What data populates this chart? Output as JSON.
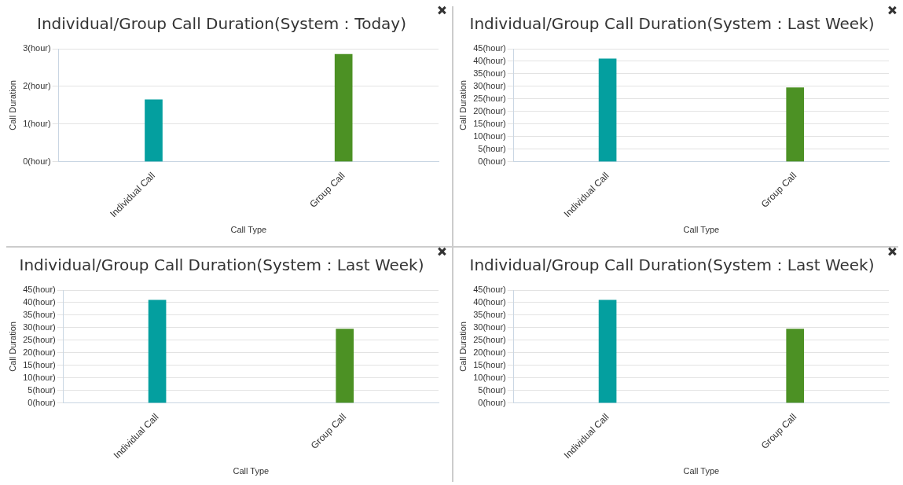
{
  "chart_data": [
    {
      "type": "bar",
      "title": "Individual/Group Call Duration(System：Today)",
      "xlabel": "Call Type",
      "ylabel": "Call Duration",
      "categories": [
        "Individual Call",
        "Group Call"
      ],
      "values": [
        1.65,
        2.85
      ],
      "colors": [
        "#049f9f",
        "#4c9124"
      ],
      "ylim": [
        0,
        3
      ],
      "yticks": [
        {
          "value": 0,
          "label": "0(hour)"
        },
        {
          "value": 1,
          "label": "1(hour)"
        },
        {
          "value": 2,
          "label": "2(hour)"
        },
        {
          "value": 3,
          "label": "3(hour)"
        }
      ],
      "grid": "y",
      "legend": false
    },
    {
      "type": "bar",
      "title": "Individual/Group Call Duration(System：Last Week)",
      "xlabel": "Call Type",
      "ylabel": "Call Duration",
      "categories": [
        "Individual Call",
        "Group Call"
      ],
      "values": [
        41,
        29.5
      ],
      "colors": [
        "#049f9f",
        "#4c9124"
      ],
      "ylim": [
        0,
        45
      ],
      "yticks": [
        {
          "value": 0,
          "label": "0(hour)"
        },
        {
          "value": 5,
          "label": "5(hour)"
        },
        {
          "value": 10,
          "label": "10(hour)"
        },
        {
          "value": 15,
          "label": "15(hour)"
        },
        {
          "value": 20,
          "label": "20(hour)"
        },
        {
          "value": 25,
          "label": "25(hour)"
        },
        {
          "value": 30,
          "label": "30(hour)"
        },
        {
          "value": 35,
          "label": "35(hour)"
        },
        {
          "value": 40,
          "label": "40(hour)"
        },
        {
          "value": 45,
          "label": "45(hour)"
        }
      ],
      "grid": "y",
      "legend": false
    },
    {
      "type": "bar",
      "title": "Individual/Group Call Duration(System：Last Week)",
      "xlabel": "Call Type",
      "ylabel": "Call Duration",
      "categories": [
        "Individual Call",
        "Group Call"
      ],
      "values": [
        41,
        29.5
      ],
      "colors": [
        "#049f9f",
        "#4c9124"
      ],
      "ylim": [
        0,
        45
      ],
      "yticks": [
        {
          "value": 0,
          "label": "0(hour)"
        },
        {
          "value": 5,
          "label": "5(hour)"
        },
        {
          "value": 10,
          "label": "10(hour)"
        },
        {
          "value": 15,
          "label": "15(hour)"
        },
        {
          "value": 20,
          "label": "20(hour)"
        },
        {
          "value": 25,
          "label": "25(hour)"
        },
        {
          "value": 30,
          "label": "30(hour)"
        },
        {
          "value": 35,
          "label": "35(hour)"
        },
        {
          "value": 40,
          "label": "40(hour)"
        },
        {
          "value": 45,
          "label": "45(hour)"
        }
      ],
      "grid": "y",
      "legend": false
    },
    {
      "type": "bar",
      "title": "Individual/Group Call Duration(System：Last Week)",
      "xlabel": "Call Type",
      "ylabel": "Call Duration",
      "categories": [
        "Individual Call",
        "Group Call"
      ],
      "values": [
        41,
        29.5
      ],
      "colors": [
        "#049f9f",
        "#4c9124"
      ],
      "ylim": [
        0,
        45
      ],
      "yticks": [
        {
          "value": 0,
          "label": "0(hour)"
        },
        {
          "value": 5,
          "label": "5(hour)"
        },
        {
          "value": 10,
          "label": "10(hour)"
        },
        {
          "value": 15,
          "label": "15(hour)"
        },
        {
          "value": 20,
          "label": "20(hour)"
        },
        {
          "value": 25,
          "label": "25(hour)"
        },
        {
          "value": 30,
          "label": "30(hour)"
        },
        {
          "value": 35,
          "label": "35(hour)"
        },
        {
          "value": 40,
          "label": "40(hour)"
        },
        {
          "value": 45,
          "label": "45(hour)"
        }
      ],
      "grid": "y",
      "legend": false
    }
  ]
}
